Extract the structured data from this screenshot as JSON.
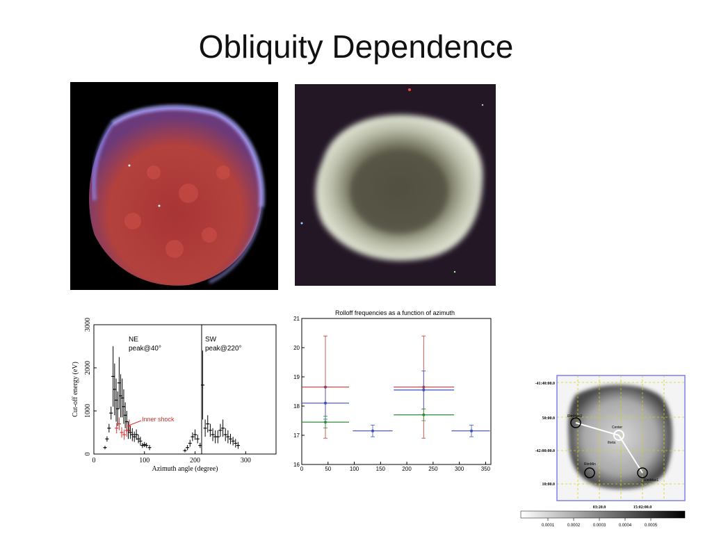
{
  "slide": {
    "title": "Obliquity Dependence"
  },
  "images": [
    {
      "name": "xray-composite-remnant",
      "colors": [
        "#000000",
        "#c0393a",
        "#8f8df5"
      ]
    },
    {
      "name": "infrared-composite-remnant",
      "colors": [
        "#2a1a2b",
        "#d8dcc8",
        "#8f9a86"
      ]
    }
  ],
  "chart_data": [
    {
      "type": "scatter",
      "title": "",
      "xlabel": "Azimuth angle (degree)",
      "ylabel": "Cut-off energy (eV)",
      "xlim": [
        0,
        360
      ],
      "ylim": [
        0,
        3000
      ],
      "xticks": [
        "0",
        "100",
        "200",
        "300"
      ],
      "yticks": [
        "0",
        "1000",
        "2000",
        "3000"
      ],
      "annotations": [
        {
          "id": "ne",
          "lines": [
            "NE",
            "peak@40°"
          ]
        },
        {
          "id": "sw",
          "lines": [
            "SW",
            "peak@220°"
          ]
        },
        {
          "id": "inner",
          "text": "Inner shock",
          "color": "#d0312d"
        }
      ],
      "series": [
        {
          "color": "#000000",
          "points": [
            [
              22,
              150,
              40
            ],
            [
              26,
              350,
              60
            ],
            [
              30,
              600,
              100
            ],
            [
              34,
              950,
              150
            ],
            [
              38,
              1800,
              700
            ],
            [
              41,
              1500,
              600
            ],
            [
              44,
              1250,
              500
            ],
            [
              47,
              1050,
              400
            ],
            [
              50,
              1650,
              600
            ],
            [
              53,
              1350,
              500
            ],
            [
              56,
              1300,
              450
            ],
            [
              59,
              1100,
              400
            ],
            [
              62,
              900,
              300
            ],
            [
              65,
              750,
              250
            ],
            [
              68,
              550,
              200
            ],
            [
              72,
              500,
              150
            ],
            [
              76,
              450,
              150
            ],
            [
              80,
              400,
              120
            ],
            [
              84,
              450,
              120
            ],
            [
              88,
              350,
              100
            ],
            [
              92,
              300,
              100
            ],
            [
              96,
              200,
              60
            ],
            [
              100,
              220,
              60
            ],
            [
              104,
              200,
              60
            ],
            [
              110,
              150,
              60
            ],
            [
              180,
              80,
              40
            ],
            [
              185,
              150,
              60
            ],
            [
              190,
              250,
              80
            ],
            [
              195,
              400,
              100
            ],
            [
              200,
              450,
              120
            ],
            [
              205,
              350,
              100
            ],
            [
              210,
              200,
              60
            ],
            [
              215,
              1600,
              800
            ],
            [
              220,
              600,
              200
            ],
            [
              225,
              700,
              200
            ],
            [
              230,
              550,
              150
            ],
            [
              235,
              450,
              150
            ],
            [
              240,
              400,
              150
            ],
            [
              245,
              400,
              150
            ],
            [
              250,
              550,
              150
            ],
            [
              255,
              600,
              200
            ],
            [
              260,
              450,
              150
            ],
            [
              265,
              400,
              150
            ],
            [
              270,
              350,
              120
            ],
            [
              275,
              300,
              100
            ],
            [
              280,
              250,
              100
            ],
            [
              285,
              200,
              80
            ]
          ]
        },
        {
          "color": "#d0312d",
          "points": [
            [
              45,
              600,
              120
            ],
            [
              50,
              700,
              150
            ],
            [
              55,
              500,
              120
            ],
            [
              60,
              450,
              120
            ],
            [
              65,
              550,
              150
            ],
            [
              70,
              650,
              150
            ]
          ]
        }
      ]
    },
    {
      "type": "scatter",
      "title": "Rolloff frequencies as a function of azimuth",
      "xlabel": "",
      "ylabel": "",
      "xlim": [
        0,
        360
      ],
      "ylim": [
        16,
        21
      ],
      "xticks": [
        "0",
        "50",
        "100",
        "150",
        "200",
        "250",
        "300",
        "350"
      ],
      "yticks": [
        "16",
        "17",
        "18",
        "19",
        "20",
        "21"
      ],
      "series": [
        {
          "color": "#c0392b",
          "points": [
            [
              45,
              18.65,
              0,
              90,
              1.75
            ],
            [
              232,
              18.65,
              175,
              290,
              1.75
            ]
          ]
        },
        {
          "color": "#3a4fbf",
          "points": [
            [
              45,
              18.1,
              0,
              90,
              0.55
            ],
            [
              232,
              18.55,
              175,
              290,
              0.65
            ],
            [
              135,
              17.15,
              97,
              173,
              0.2
            ],
            [
              323,
              17.15,
              285,
              358,
              0.2
            ]
          ]
        },
        {
          "color": "#2e8b3a",
          "points": [
            [
              45,
              17.45,
              0,
              90,
              0.2
            ],
            [
              232,
              17.7,
              175,
              290,
              0.2
            ]
          ]
        }
      ]
    },
    {
      "type": "heatmap",
      "title": "",
      "ylabels": [
        "-41:40:00.0",
        "50:00.0",
        "-42:00:00.0",
        "10:00.0"
      ],
      "xlabels": [
        "03:20.0",
        "15:02:00.0"
      ],
      "colorbar_ticks": [
        "0.0001",
        "0.0002",
        "0.0003",
        "0.0004",
        "0.0005"
      ],
      "region_labels": [
        "RimMax2",
        "Center",
        "theta",
        "RimMin",
        "RimMax1"
      ],
      "grid_color": "#d4d400",
      "frame_color": "#7b7ff0"
    }
  ]
}
